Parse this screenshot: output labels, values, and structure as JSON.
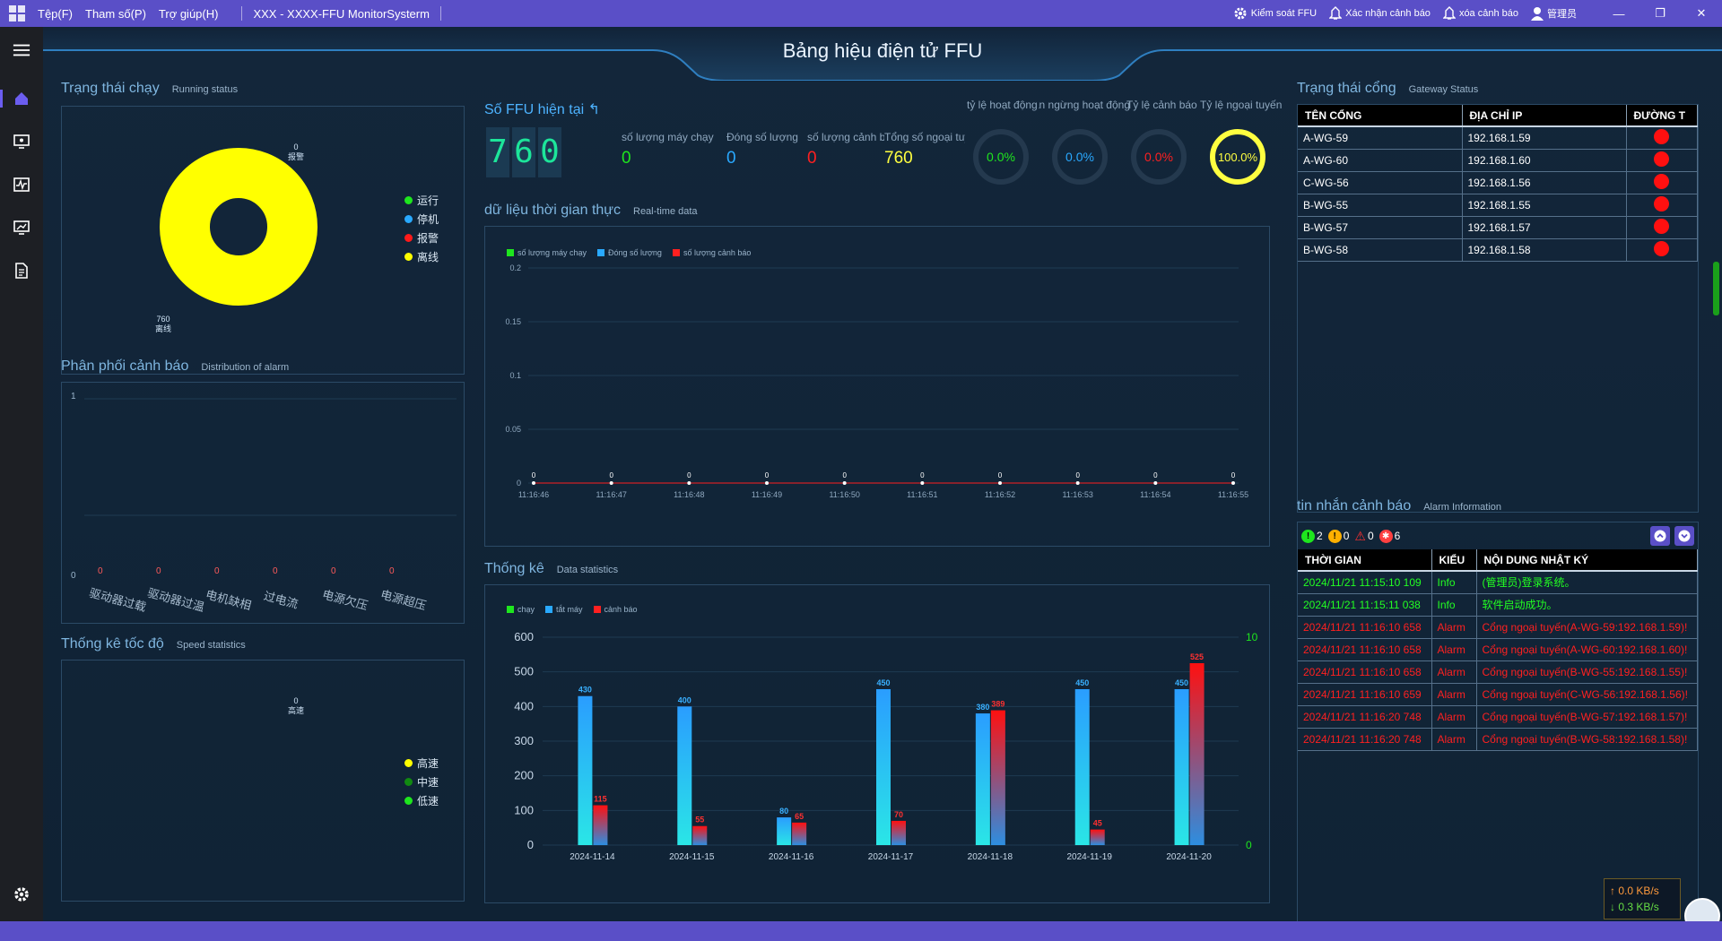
{
  "menubar": {
    "items": [
      "Tệp(F)",
      "Tham số(P)",
      "Trợ giúp(H)"
    ],
    "app_title": "XXX - XXXX-FFU MonitorSysterm",
    "actions": [
      "Kiểm soát FFU",
      "Xác nhận cảnh báo",
      "xóa cảnh báo",
      "管理员"
    ]
  },
  "header": {
    "title": "Bảng hiệu điện tử FFU"
  },
  "running": {
    "title": "Trạng thái chạy",
    "subtitle": "Running status",
    "top_value": "0",
    "top_label": "报警",
    "bottom_value": "760",
    "bottom_label": "离线",
    "legend": [
      {
        "label": "运行",
        "color": "#1ee61e"
      },
      {
        "label": "停机",
        "color": "#29a9ff"
      },
      {
        "label": "报警",
        "color": "#ff1a1a"
      },
      {
        "label": "离线",
        "color": "#ffff00"
      }
    ]
  },
  "alarm_dist": {
    "title": "Phân phối cảnh báo",
    "subtitle": "Distribution of alarm",
    "ymax": "1",
    "ymin": "0",
    "categories": [
      "驱动器过载",
      "驱动器过温",
      "电机缺相",
      "过电流",
      "电源欠压",
      "电源超压"
    ],
    "values": [
      "0",
      "0",
      "0",
      "0",
      "0",
      "0"
    ]
  },
  "speed": {
    "title": "Thống kê tốc độ",
    "subtitle": "Speed statistics",
    "value": "0",
    "value_label": "高速",
    "legend": [
      {
        "label": "高速",
        "color": "#ffff00"
      },
      {
        "label": "中速",
        "color": "#118a11"
      },
      {
        "label": "低速",
        "color": "#1ee61e"
      }
    ]
  },
  "ffu": {
    "title": "Số FFU hiện tại",
    "digits": [
      "7",
      "6",
      "0"
    ],
    "stats": [
      {
        "label": "số lượng máy chạy",
        "value": "0",
        "color": "#1ee61e"
      },
      {
        "label": "Đóng số lượng",
        "value": "0",
        "color": "#29a9ff"
      },
      {
        "label": "số lượng cảnh báo",
        "value": "0",
        "color": "#ff2020"
      },
      {
        "label": "Tổng số ngoại tuyến",
        "value": "760",
        "color": "#ffff40"
      }
    ],
    "rate_labels": [
      "tỷ lệ hoạt động",
      "Tỷ lệ thời gian ngừng hoạt động",
      "Tỷ lệ cảnh báo",
      "Tỷ lệ ngoại tuyến"
    ],
    "rates": [
      {
        "value": "0.0%",
        "color": "#1ee61e"
      },
      {
        "value": "0.0%",
        "color": "#29a9ff"
      },
      {
        "value": "0.0%",
        "color": "#ff2020"
      },
      {
        "value": "100.0%",
        "color": "#ffff40"
      }
    ]
  },
  "realtime": {
    "title": "dữ liệu thời gian thực",
    "subtitle": "Real-time data",
    "legend": [
      {
        "label": "số lượng máy chạy",
        "color": "#1ee61e"
      },
      {
        "label": "Đóng số lượng",
        "color": "#29a9ff"
      },
      {
        "label": "số lượng cảnh báo",
        "color": "#ff2020"
      }
    ]
  },
  "stats_chart": {
    "title": "Thống kê",
    "subtitle": "Data statistics",
    "legend": [
      {
        "label": "chạy",
        "color": "#1ee61e"
      },
      {
        "label": "tắt máy",
        "color": "#29a9ff"
      },
      {
        "label": "cảnh báo",
        "color": "#ff2020"
      }
    ]
  },
  "chart_data": [
    {
      "type": "line",
      "title": "dữ liệu thời gian thực",
      "x": [
        "11:16:46",
        "11:16:47",
        "11:16:48",
        "11:16:49",
        "11:16:50",
        "11:16:51",
        "11:16:52",
        "11:16:53",
        "11:16:54",
        "11:16:55"
      ],
      "series": [
        {
          "name": "số lượng máy chạy",
          "values": [
            0,
            0,
            0,
            0,
            0,
            0,
            0,
            0,
            0,
            0
          ]
        },
        {
          "name": "Đóng số lượng",
          "values": [
            0,
            0,
            0,
            0,
            0,
            0,
            0,
            0,
            0,
            0
          ]
        },
        {
          "name": "số lượng cảnh báo",
          "values": [
            0,
            0,
            0,
            0,
            0,
            0,
            0,
            0,
            0,
            0
          ]
        }
      ],
      "yticks": [
        "0",
        "0.05",
        "0.1",
        "0.15",
        "0.2"
      ],
      "ylim": [
        0,
        0.2
      ]
    },
    {
      "type": "bar",
      "title": "Thống kê",
      "categories": [
        "2024-11-14",
        "2024-11-15",
        "2024-11-16",
        "2024-11-17",
        "2024-11-18",
        "2024-11-19",
        "2024-11-20"
      ],
      "series": [
        {
          "name": "tắt máy",
          "values": [
            430,
            400,
            80,
            450,
            380,
            450,
            450
          ]
        },
        {
          "name": "cảnh báo",
          "values": [
            115,
            55,
            65,
            70,
            389,
            45,
            525
          ]
        }
      ],
      "yticks": [
        "0",
        "100",
        "200",
        "300",
        "400",
        "500",
        "600"
      ],
      "ylim": [
        0,
        600
      ],
      "y2ticks": [
        "0",
        "10"
      ]
    }
  ],
  "gateway": {
    "title": "Trạng thái cổng",
    "subtitle": "Gateway Status",
    "columns": [
      "TÊN CỔNG",
      "ĐỊA CHỈ IP",
      "ĐƯỜNG T"
    ],
    "rows": [
      {
        "name": "A-WG-59",
        "ip": "192.168.1.59"
      },
      {
        "name": "A-WG-60",
        "ip": "192.168.1.60"
      },
      {
        "name": "C-WG-56",
        "ip": "192.168.1.56"
      },
      {
        "name": "B-WG-55",
        "ip": "192.168.1.55"
      },
      {
        "name": "B-WG-57",
        "ip": "192.168.1.57"
      },
      {
        "name": "B-WG-58",
        "ip": "192.168.1.58"
      }
    ]
  },
  "alarm_info": {
    "title": "tin nhắn cảnh báo",
    "subtitle": "Alarm Information",
    "counts": [
      "2",
      "0",
      "0",
      "6"
    ],
    "columns": [
      "THỜI GIAN",
      "KIỂU",
      "NỘI DUNG NHẬT KÝ"
    ],
    "rows": [
      {
        "time": "2024/11/21 11:15:10 109",
        "type": "Info",
        "msg": "(管理员)登录系统。",
        "color": "#22ff22"
      },
      {
        "time": "2024/11/21 11:15:11 038",
        "type": "Info",
        "msg": "软件启动成功。",
        "color": "#22ff22"
      },
      {
        "time": "2024/11/21 11:16:10 658",
        "type": "Alarm",
        "msg": "Cổng ngoại tuyến(A-WG-59:192.168.1.59)!",
        "color": "#ff2020"
      },
      {
        "time": "2024/11/21 11:16:10 658",
        "type": "Alarm",
        "msg": "Cổng ngoại tuyến(A-WG-60:192.168.1.60)!",
        "color": "#ff2020"
      },
      {
        "time": "2024/11/21 11:16:10 658",
        "type": "Alarm",
        "msg": "Cổng ngoại tuyến(B-WG-55:192.168.1.55)!",
        "color": "#ff2020"
      },
      {
        "time": "2024/11/21 11:16:10 659",
        "type": "Alarm",
        "msg": "Cổng ngoại tuyến(C-WG-56:192.168.1.56)!",
        "color": "#ff2020"
      },
      {
        "time": "2024/11/21 11:16:20 748",
        "type": "Alarm",
        "msg": "Cổng ngoại tuyến(B-WG-57:192.168.1.57)!",
        "color": "#ff2020"
      },
      {
        "time": "2024/11/21 11:16:20 748",
        "type": "Alarm",
        "msg": "Cổng ngoại tuyến(B-WG-58:192.168.1.58)!",
        "color": "#ff2020"
      }
    ]
  },
  "network": {
    "up": "0.0 KB/s",
    "down": "0.3 KB/s"
  }
}
